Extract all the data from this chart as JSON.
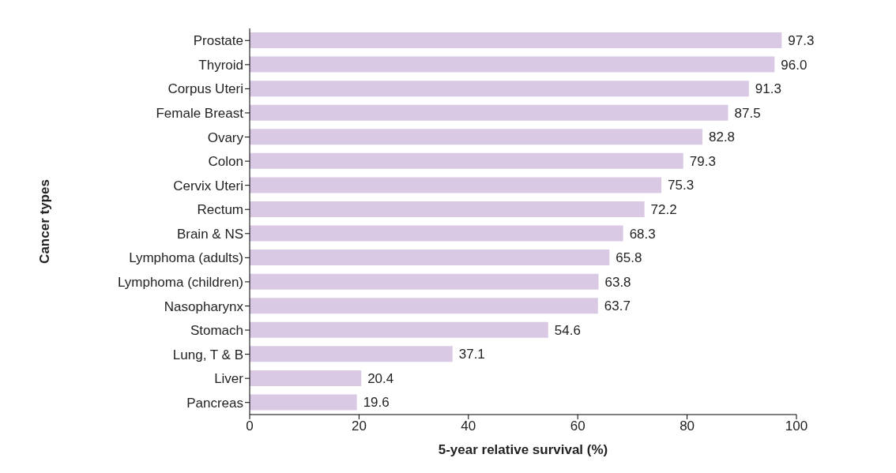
{
  "chart_data": {
    "type": "bar",
    "orientation": "horizontal",
    "xlabel": "5-year relative survival (%)",
    "ylabel": "Cancer types",
    "categories": [
      "Prostate",
      "Thyroid",
      "Corpus Uteri",
      "Female Breast",
      "Ovary",
      "Colon",
      "Cervix Uteri",
      "Rectum",
      "Brain & NS",
      "Lymphoma (adults)",
      "Lymphoma (children)",
      "Nasopharynx",
      "Stomach",
      "Lung, T & B",
      "Liver",
      "Pancreas"
    ],
    "values": [
      97.3,
      96.0,
      91.3,
      87.5,
      82.8,
      79.3,
      75.3,
      72.2,
      68.3,
      65.8,
      63.8,
      63.7,
      54.6,
      37.1,
      20.4,
      19.6
    ],
    "value_labels": [
      "97.3",
      "96.0",
      "91.3",
      "87.5",
      "82.8",
      "79.3",
      "75.3",
      "72.2",
      "68.3",
      "65.8",
      "63.8",
      "63.7",
      "54.6",
      "37.1",
      "20.4",
      "19.6"
    ],
    "color": "#d9c9e5",
    "xlim": [
      0,
      100
    ],
    "xticks": [
      0,
      20,
      40,
      60,
      80,
      100
    ],
    "grid": false,
    "legend": false
  }
}
